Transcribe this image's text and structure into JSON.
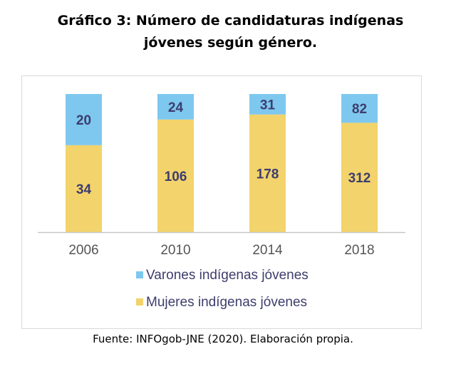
{
  "title_line1": "Gráfico 3: Número de candidaturas indígenas",
  "title_line2": "jóvenes según género.",
  "source": "Fuente: INFOgob-JNE (2020). Elaboración propia.",
  "chart_data": {
    "type": "bar",
    "stacked": true,
    "categories": [
      "2006",
      "2010",
      "2014",
      "2018"
    ],
    "series": [
      {
        "name": "Mujeres indígenas jóvenes",
        "values": [
          34,
          106,
          178,
          312
        ],
        "color": "#f3d36b"
      },
      {
        "name": "Varones indígenas jóvenes",
        "values": [
          20,
          24,
          31,
          82
        ],
        "color": "#7ec8ef"
      }
    ],
    "normalized": true,
    "ylim": [
      0,
      100
    ],
    "grid": false,
    "legend_position": "bottom",
    "label_color": "#3d3d6e",
    "axis_color": "#c8c8c8"
  }
}
